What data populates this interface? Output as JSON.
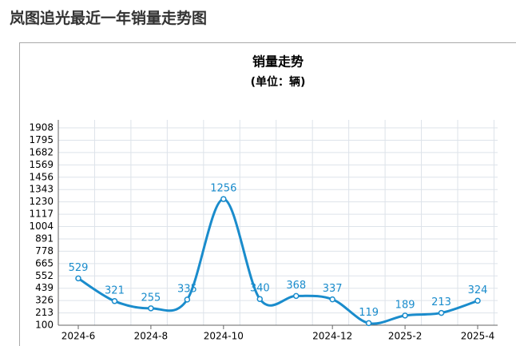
{
  "page_title": "岚图追光最近一年销量走势图",
  "chart_data": {
    "type": "line",
    "title": "销量走势",
    "subtitle": "(单位：辆)",
    "categories": [
      "2024-6",
      null,
      "2024-8",
      null,
      "2024-10",
      null,
      null,
      "2024-12",
      null,
      "2025-2",
      null,
      "2025-4"
    ],
    "series": [
      {
        "name": "销量",
        "color": "#1a8ccc",
        "values": [
          529,
          321,
          255,
          335,
          1256,
          340,
          368,
          337,
          119,
          189,
          213,
          324
        ]
      }
    ],
    "ylim": [
      100,
      1908
    ],
    "yticks": [
      100,
      213,
      326,
      439,
      552,
      665,
      778,
      891,
      1004,
      1117,
      1230,
      1343,
      1456,
      1569,
      1682,
      1795,
      1908
    ],
    "grid": true,
    "smooth": true
  }
}
